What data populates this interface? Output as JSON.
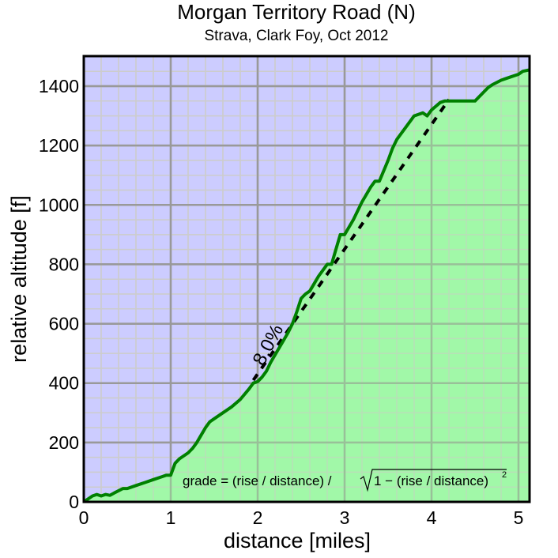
{
  "header": {
    "title": "Morgan Territory Road (N)",
    "subtitle": "Strava, Clark Foy, Oct 2012"
  },
  "axes": {
    "xlabel": "distance [miles]",
    "ylabel": "relative altitude [f]",
    "xticks": [
      "0",
      "1",
      "2",
      "3",
      "4",
      "5"
    ],
    "yticks": [
      "0",
      "200",
      "400",
      "600",
      "800",
      "1000",
      "1200",
      "1400"
    ]
  },
  "annotations": {
    "grade_label": "8.0%",
    "formula_left": "grade = (rise / distance) /",
    "formula_right": "1 − (rise / distance)",
    "formula_exp": "2"
  },
  "colors": {
    "sky": "#ccccff",
    "ground": "#99ff99",
    "profile_line": "#008000",
    "major_grid": "#999999",
    "minor_grid": "#cccccc",
    "fit_line": "#000000"
  },
  "chart_data": {
    "type": "area",
    "title": "Morgan Territory Road (N)",
    "subtitle": "Strava, Clark Foy, Oct 2012",
    "xlabel": "distance [miles]",
    "ylabel": "relative altitude [f]",
    "xlim": [
      0,
      5.13
    ],
    "ylim": [
      0,
      1500
    ],
    "grid": true,
    "x": [
      0.0,
      0.1,
      0.15,
      0.2,
      0.25,
      0.3,
      0.35,
      0.45,
      0.5,
      0.6,
      0.7,
      0.8,
      0.9,
      0.95,
      1.0,
      1.05,
      1.1,
      1.2,
      1.25,
      1.3,
      1.4,
      1.45,
      1.5,
      1.6,
      1.7,
      1.8,
      1.9,
      1.95,
      2.0,
      2.05,
      2.1,
      2.15,
      2.2,
      2.3,
      2.35,
      2.4,
      2.45,
      2.5,
      2.55,
      2.6,
      2.7,
      2.8,
      2.85,
      2.9,
      2.95,
      3.0,
      3.1,
      3.2,
      3.3,
      3.35,
      3.4,
      3.5,
      3.55,
      3.6,
      3.7,
      3.8,
      3.9,
      3.95,
      4.0,
      4.1,
      4.15,
      4.2,
      4.3,
      4.4,
      4.5,
      4.6,
      4.65,
      4.7,
      4.8,
      4.9,
      5.0,
      5.05,
      5.13
    ],
    "values": [
      0,
      20,
      25,
      20,
      25,
      22,
      30,
      45,
      45,
      55,
      65,
      75,
      85,
      90,
      90,
      130,
      145,
      165,
      180,
      200,
      250,
      270,
      280,
      300,
      320,
      345,
      380,
      400,
      405,
      420,
      440,
      470,
      495,
      545,
      570,
      600,
      640,
      685,
      700,
      710,
      760,
      800,
      800,
      850,
      900,
      900,
      950,
      1010,
      1060,
      1080,
      1080,
      1150,
      1190,
      1220,
      1260,
      1300,
      1310,
      1300,
      1320,
      1345,
      1350,
      1350,
      1350,
      1350,
      1350,
      1380,
      1395,
      1405,
      1420,
      1430,
      1440,
      1450,
      1455
    ],
    "fit_line": {
      "label": "8.0%",
      "x": [
        1.95,
        4.2
      ],
      "values": [
        410,
        1355
      ],
      "style": "dashed"
    },
    "annotations": [
      "8.0%",
      "grade = (rise / distance) / sqrt(1 - (rise / distance)^2)"
    ]
  }
}
